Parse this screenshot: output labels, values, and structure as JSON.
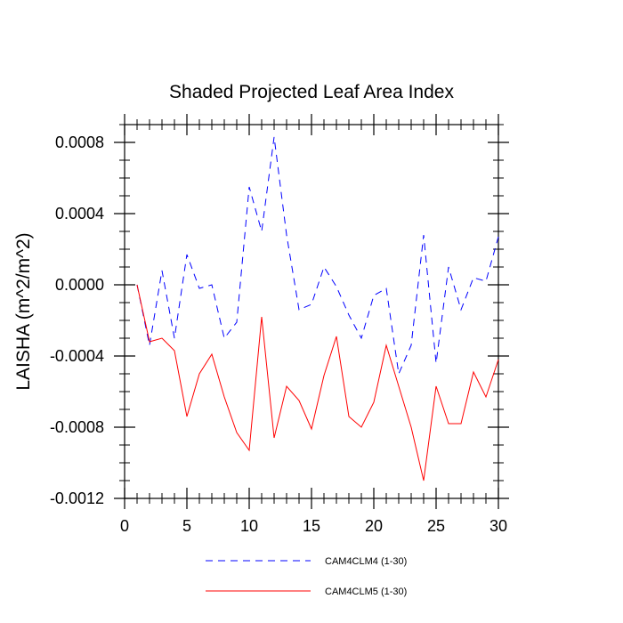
{
  "chart_data": {
    "type": "line",
    "title": "Shaded Projected Leaf Area Index",
    "xlabel": "",
    "ylabel": "LAISHA  (m^2/m^2)",
    "xlim": [
      0,
      30
    ],
    "ylim": [
      -0.0012,
      0.0009
    ],
    "x_ticks": [
      0,
      5,
      10,
      15,
      20,
      25,
      30
    ],
    "x_tick_labels": [
      "0",
      "5",
      "10",
      "15",
      "20",
      "25",
      "30"
    ],
    "y_ticks": [
      -0.0012,
      -0.0008,
      -0.0004,
      0.0,
      0.0004,
      0.0008
    ],
    "y_tick_labels": [
      "-0.0012",
      "-0.0008",
      "-0.0004",
      "0.0000",
      "0.0004",
      "0.0008"
    ],
    "grid": false,
    "legend_position": "bottom",
    "x": [
      1,
      2,
      3,
      4,
      5,
      6,
      7,
      8,
      9,
      10,
      11,
      12,
      13,
      14,
      15,
      16,
      17,
      18,
      19,
      20,
      21,
      22,
      23,
      24,
      25,
      26,
      27,
      28,
      29,
      30
    ],
    "series": [
      {
        "name": "CAM4CLM4 (1-30)",
        "color": "#0000ff",
        "dash": "dashed",
        "values": [
          0.0,
          -0.00034,
          8e-05,
          -0.0003,
          0.00017,
          -2e-05,
          0.0,
          -0.0003,
          -0.00021,
          0.00055,
          0.0003,
          0.00083,
          0.00028,
          -0.00014,
          -0.00011,
          0.0001,
          -1e-05,
          -0.00017,
          -0.0003,
          -6e-05,
          -2e-05,
          -0.0005,
          -0.00034,
          0.00028,
          -0.00044,
          0.0001,
          -0.00014,
          4e-05,
          2e-05,
          0.00027
        ]
      },
      {
        "name": "CAM4CLM5 (1-30)",
        "color": "#ff0000",
        "dash": "solid",
        "values": [
          0.0,
          -0.00032,
          -0.0003,
          -0.00037,
          -0.00074,
          -0.0005,
          -0.00039,
          -0.00063,
          -0.00083,
          -0.00093,
          -0.00018,
          -0.00086,
          -0.00057,
          -0.00065,
          -0.00081,
          -0.00051,
          -0.00029,
          -0.00074,
          -0.0008,
          -0.00066,
          -0.00034,
          -0.00057,
          -0.0008,
          -0.0011,
          -0.00057,
          -0.00078,
          -0.00078,
          -0.00049,
          -0.00063,
          -0.00042
        ]
      }
    ]
  }
}
